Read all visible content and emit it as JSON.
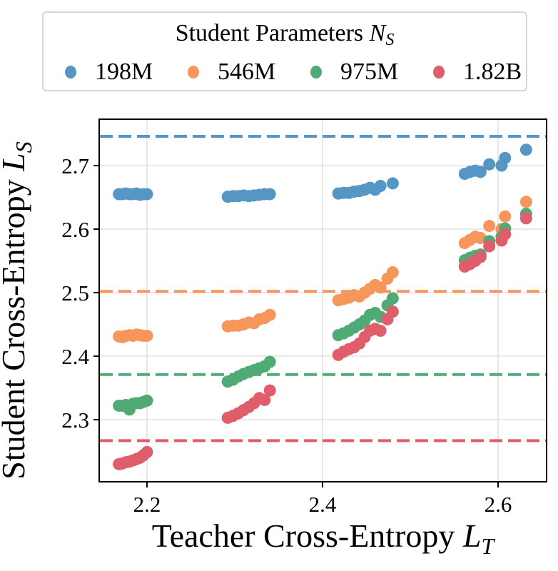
{
  "chart_data": {
    "type": "scatter",
    "title": "",
    "xlabel": "Teacher Cross-Entropy L_T",
    "ylabel": "Student Cross-Entropy L_S",
    "xlim": [
      2.145,
      2.655
    ],
    "ylim": [
      2.202,
      2.773
    ],
    "xticks": [
      2.2,
      2.4,
      2.6
    ],
    "yticks": [
      2.3,
      2.4,
      2.5,
      2.6,
      2.7
    ],
    "grid": true,
    "legend": {
      "title": "Student Parameters N_S",
      "position": "top-outside",
      "entries": [
        "198M",
        "546M",
        "975M",
        "1.82B"
      ]
    },
    "series": [
      {
        "name": "198M",
        "color": "#5596c4",
        "baseline": 2.746,
        "points": [
          [
            2.168,
            2.655
          ],
          [
            2.172,
            2.655
          ],
          [
            2.176,
            2.656
          ],
          [
            2.18,
            2.655
          ],
          [
            2.184,
            2.655
          ],
          [
            2.188,
            2.656
          ],
          [
            2.192,
            2.654
          ],
          [
            2.196,
            2.655
          ],
          [
            2.2,
            2.655
          ],
          [
            2.292,
            2.651
          ],
          [
            2.298,
            2.652
          ],
          [
            2.304,
            2.652
          ],
          [
            2.31,
            2.653
          ],
          [
            2.316,
            2.652
          ],
          [
            2.322,
            2.653
          ],
          [
            2.328,
            2.654
          ],
          [
            2.334,
            2.655
          ],
          [
            2.34,
            2.655
          ],
          [
            2.418,
            2.656
          ],
          [
            2.424,
            2.657
          ],
          [
            2.43,
            2.657
          ],
          [
            2.436,
            2.659
          ],
          [
            2.442,
            2.66
          ],
          [
            2.448,
            2.662
          ],
          [
            2.454,
            2.665
          ],
          [
            2.46,
            2.662
          ],
          [
            2.466,
            2.668
          ],
          [
            2.48,
            2.672
          ],
          [
            2.562,
            2.687
          ],
          [
            2.568,
            2.69
          ],
          [
            2.574,
            2.692
          ],
          [
            2.58,
            2.69
          ],
          [
            2.59,
            2.702
          ],
          [
            2.604,
            2.7
          ],
          [
            2.608,
            2.712
          ],
          [
            2.632,
            2.725
          ]
        ]
      },
      {
        "name": "546M",
        "color": "#f7965b",
        "baseline": 2.502,
        "points": [
          [
            2.168,
            2.431
          ],
          [
            2.172,
            2.43
          ],
          [
            2.176,
            2.432
          ],
          [
            2.18,
            2.433
          ],
          [
            2.184,
            2.432
          ],
          [
            2.188,
            2.434
          ],
          [
            2.192,
            2.433
          ],
          [
            2.196,
            2.432
          ],
          [
            2.2,
            2.432
          ],
          [
            2.292,
            2.447
          ],
          [
            2.298,
            2.448
          ],
          [
            2.304,
            2.448
          ],
          [
            2.31,
            2.45
          ],
          [
            2.316,
            2.453
          ],
          [
            2.322,
            2.452
          ],
          [
            2.328,
            2.458
          ],
          [
            2.334,
            2.46
          ],
          [
            2.34,
            2.465
          ],
          [
            2.418,
            2.488
          ],
          [
            2.424,
            2.49
          ],
          [
            2.43,
            2.492
          ],
          [
            2.436,
            2.496
          ],
          [
            2.442,
            2.494
          ],
          [
            2.448,
            2.5
          ],
          [
            2.454,
            2.506
          ],
          [
            2.46,
            2.512
          ],
          [
            2.466,
            2.508
          ],
          [
            2.474,
            2.522
          ],
          [
            2.48,
            2.532
          ],
          [
            2.562,
            2.578
          ],
          [
            2.568,
            2.583
          ],
          [
            2.574,
            2.588
          ],
          [
            2.58,
            2.586
          ],
          [
            2.59,
            2.605
          ],
          [
            2.604,
            2.6
          ],
          [
            2.608,
            2.62
          ],
          [
            2.632,
            2.643
          ]
        ]
      },
      {
        "name": "975M",
        "color": "#4faa76",
        "baseline": 2.371,
        "points": [
          [
            2.168,
            2.322
          ],
          [
            2.172,
            2.322
          ],
          [
            2.176,
            2.323
          ],
          [
            2.18,
            2.316
          ],
          [
            2.184,
            2.325
          ],
          [
            2.188,
            2.326
          ],
          [
            2.192,
            2.326
          ],
          [
            2.196,
            2.328
          ],
          [
            2.2,
            2.33
          ],
          [
            2.292,
            2.36
          ],
          [
            2.298,
            2.363
          ],
          [
            2.304,
            2.368
          ],
          [
            2.31,
            2.372
          ],
          [
            2.316,
            2.375
          ],
          [
            2.322,
            2.378
          ],
          [
            2.328,
            2.381
          ],
          [
            2.334,
            2.384
          ],
          [
            2.34,
            2.391
          ],
          [
            2.418,
            2.433
          ],
          [
            2.424,
            2.436
          ],
          [
            2.43,
            2.44
          ],
          [
            2.436,
            2.445
          ],
          [
            2.442,
            2.45
          ],
          [
            2.448,
            2.456
          ],
          [
            2.454,
            2.465
          ],
          [
            2.46,
            2.468
          ],
          [
            2.466,
            2.462
          ],
          [
            2.474,
            2.48
          ],
          [
            2.48,
            2.491
          ],
          [
            2.562,
            2.551
          ],
          [
            2.568,
            2.555
          ],
          [
            2.574,
            2.558
          ],
          [
            2.58,
            2.56
          ],
          [
            2.59,
            2.581
          ],
          [
            2.604,
            2.588
          ],
          [
            2.608,
            2.601
          ],
          [
            2.632,
            2.624
          ]
        ]
      },
      {
        "name": "1.82B",
        "color": "#e05d6b",
        "baseline": 2.267,
        "points": [
          [
            2.168,
            2.23
          ],
          [
            2.172,
            2.231
          ],
          [
            2.176,
            2.233
          ],
          [
            2.18,
            2.234
          ],
          [
            2.184,
            2.236
          ],
          [
            2.188,
            2.238
          ],
          [
            2.192,
            2.24
          ],
          [
            2.196,
            2.244
          ],
          [
            2.2,
            2.249
          ],
          [
            2.292,
            2.303
          ],
          [
            2.298,
            2.306
          ],
          [
            2.304,
            2.31
          ],
          [
            2.31,
            2.315
          ],
          [
            2.316,
            2.32
          ],
          [
            2.322,
            2.326
          ],
          [
            2.328,
            2.334
          ],
          [
            2.334,
            2.331
          ],
          [
            2.34,
            2.346
          ],
          [
            2.418,
            2.402
          ],
          [
            2.424,
            2.407
          ],
          [
            2.43,
            2.411
          ],
          [
            2.436,
            2.414
          ],
          [
            2.442,
            2.42
          ],
          [
            2.448,
            2.43
          ],
          [
            2.454,
            2.44
          ],
          [
            2.46,
            2.443
          ],
          [
            2.466,
            2.44
          ],
          [
            2.474,
            2.458
          ],
          [
            2.48,
            2.47
          ],
          [
            2.562,
            2.541
          ],
          [
            2.568,
            2.545
          ],
          [
            2.574,
            2.55
          ],
          [
            2.58,
            2.556
          ],
          [
            2.59,
            2.573
          ],
          [
            2.604,
            2.582
          ],
          [
            2.608,
            2.592
          ],
          [
            2.632,
            2.617
          ]
        ]
      }
    ]
  },
  "legend": {
    "title": "Student Parameters",
    "title_symbol": "N",
    "title_subscript": "S",
    "items": [
      {
        "label": "198M",
        "color": "#5596c4"
      },
      {
        "label": "546M",
        "color": "#f7965b"
      },
      {
        "label": "975M",
        "color": "#4faa76"
      },
      {
        "label": "1.82B",
        "color": "#e05d6b"
      }
    ]
  },
  "axes": {
    "x_label_text": "Teacher Cross-Entropy",
    "x_label_symbol": "L",
    "x_label_subscript": "T",
    "y_label_text": "Student Cross-Entropy",
    "y_label_symbol": "L",
    "y_label_subscript": "S",
    "x_tick_labels": [
      "2.2",
      "2.4",
      "2.6"
    ],
    "y_tick_labels": [
      "2.3",
      "2.4",
      "2.5",
      "2.6",
      "2.7"
    ]
  }
}
